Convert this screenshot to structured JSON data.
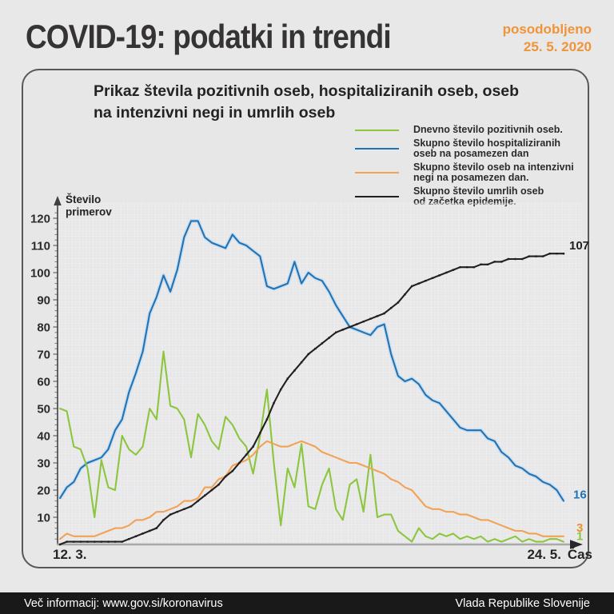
{
  "header": {
    "title": "COVID-19: podatki in trendi",
    "updated_label": "posodobljeno",
    "updated_date": "25. 5. 2020",
    "accent_color": "#ef9439"
  },
  "panel": {
    "title_line1": "Prikaz števila pozitivnih oseb, hospitaliziranih oseb, oseb",
    "title_line2": "na intenzivni negi in umrlih oseb"
  },
  "legend": [
    {
      "label": "Dnevno število pozitivnih oseb.",
      "color": "#8cc63f"
    },
    {
      "label": "Skupno število hospitaliziranih\noseb na posamezen dan",
      "color": "#1f74b8"
    },
    {
      "label": "Skupno število oseb na intenzivni\nnegi na posamezen dan.",
      "color": "#f1a254"
    },
    {
      "label": "Skupno število umrlih oseb\nod začetka epidemije.",
      "color": "#231f20"
    }
  ],
  "chart_data": {
    "type": "line",
    "title": "Prikaz števila pozitivnih oseb, hospitaliziranih oseb, oseb na intenzivni negi in umrlih oseb",
    "ylabel": "Število\nprimerov",
    "xlabel": "Čas",
    "x_start_label": "12. 3.",
    "x_end_label": "24. 5.",
    "ylim": [
      0,
      124
    ],
    "yticks": [
      10,
      20,
      30,
      40,
      50,
      60,
      70,
      80,
      90,
      100,
      110,
      120
    ],
    "grid": true,
    "legend_position": "top-right",
    "series": [
      {
        "id": "positive",
        "name": "Dnevno število pozitivnih oseb.",
        "color": "#8cc63f",
        "end_label": "1",
        "values": [
          50,
          49,
          36,
          35,
          28,
          10,
          31,
          21,
          20,
          40,
          35,
          33,
          36,
          50,
          46,
          71,
          51,
          50,
          46,
          32,
          48,
          44,
          38,
          35,
          47,
          44,
          39,
          36,
          26,
          40,
          57,
          30,
          7,
          28,
          21,
          37,
          14,
          13,
          22,
          28,
          13,
          9,
          22,
          24,
          12,
          33,
          10,
          11,
          11,
          5,
          3,
          1,
          6,
          3,
          2,
          4,
          3,
          4,
          2,
          3,
          2,
          3,
          1,
          2,
          1,
          2,
          3,
          1,
          2,
          1,
          1,
          2,
          2,
          1
        ]
      },
      {
        "id": "hospitalized",
        "name": "Skupno število hospitaliziranih oseb na posamezen dan",
        "color": "#1f74b8",
        "halo": "#b9d6ec",
        "end_label": "16",
        "values": [
          17,
          21,
          23,
          28,
          30,
          31,
          32,
          35,
          42,
          46,
          56,
          63,
          71,
          85,
          91,
          99,
          93,
          101,
          113,
          119,
          119,
          113,
          111,
          110,
          109,
          114,
          111,
          110,
          108,
          106,
          95,
          94,
          95,
          96,
          104,
          96,
          100,
          98,
          97,
          93,
          88,
          84,
          80,
          79,
          78,
          77,
          80,
          81,
          70,
          62,
          60,
          61,
          59,
          55,
          53,
          52,
          49,
          46,
          43,
          42,
          42,
          42,
          39,
          38,
          34,
          32,
          29,
          28,
          26,
          25,
          23,
          22,
          20,
          16
        ]
      },
      {
        "id": "icu",
        "name": "Skupno število oseb na intenzivni negi na posamezen dan.",
        "color": "#f1a254",
        "label_color": "#ef8f2e",
        "end_label": "3",
        "values": [
          2,
          4,
          3,
          3,
          3,
          3,
          4,
          5,
          6,
          6,
          7,
          9,
          9,
          10,
          12,
          12,
          13,
          14,
          16,
          16,
          17,
          21,
          21,
          24,
          25,
          29,
          30,
          31,
          33,
          36,
          38,
          37,
          36,
          36,
          37,
          38,
          37,
          36,
          34,
          33,
          32,
          31,
          30,
          30,
          29,
          28,
          27,
          26,
          24,
          23,
          21,
          20,
          17,
          14,
          13,
          13,
          12,
          12,
          11,
          11,
          10,
          9,
          9,
          8,
          7,
          6,
          5,
          5,
          4,
          4,
          3,
          3,
          3,
          3
        ]
      },
      {
        "id": "deaths",
        "name": "Skupno število umrlih oseb od začetka epidemije.",
        "color": "#231f20",
        "end_label": "107",
        "values": [
          0,
          1,
          1,
          1,
          1,
          1,
          1,
          1,
          1,
          1,
          2,
          3,
          4,
          5,
          6,
          9,
          11,
          12,
          13,
          14,
          16,
          18,
          20,
          22,
          25,
          27,
          30,
          33,
          36,
          41,
          46,
          52,
          57,
          61,
          64,
          67,
          70,
          72,
          74,
          76,
          78,
          79,
          80,
          81,
          82,
          83,
          84,
          85,
          87,
          89,
          92,
          95,
          96,
          97,
          98,
          99,
          100,
          101,
          102,
          102,
          102,
          103,
          103,
          104,
          104,
          105,
          105,
          105,
          106,
          106,
          106,
          107,
          107,
          107
        ]
      }
    ]
  },
  "footer": {
    "left": "Več informacij: www.gov.si/koronavirus",
    "right": "Vlada Republike Slovenije"
  }
}
